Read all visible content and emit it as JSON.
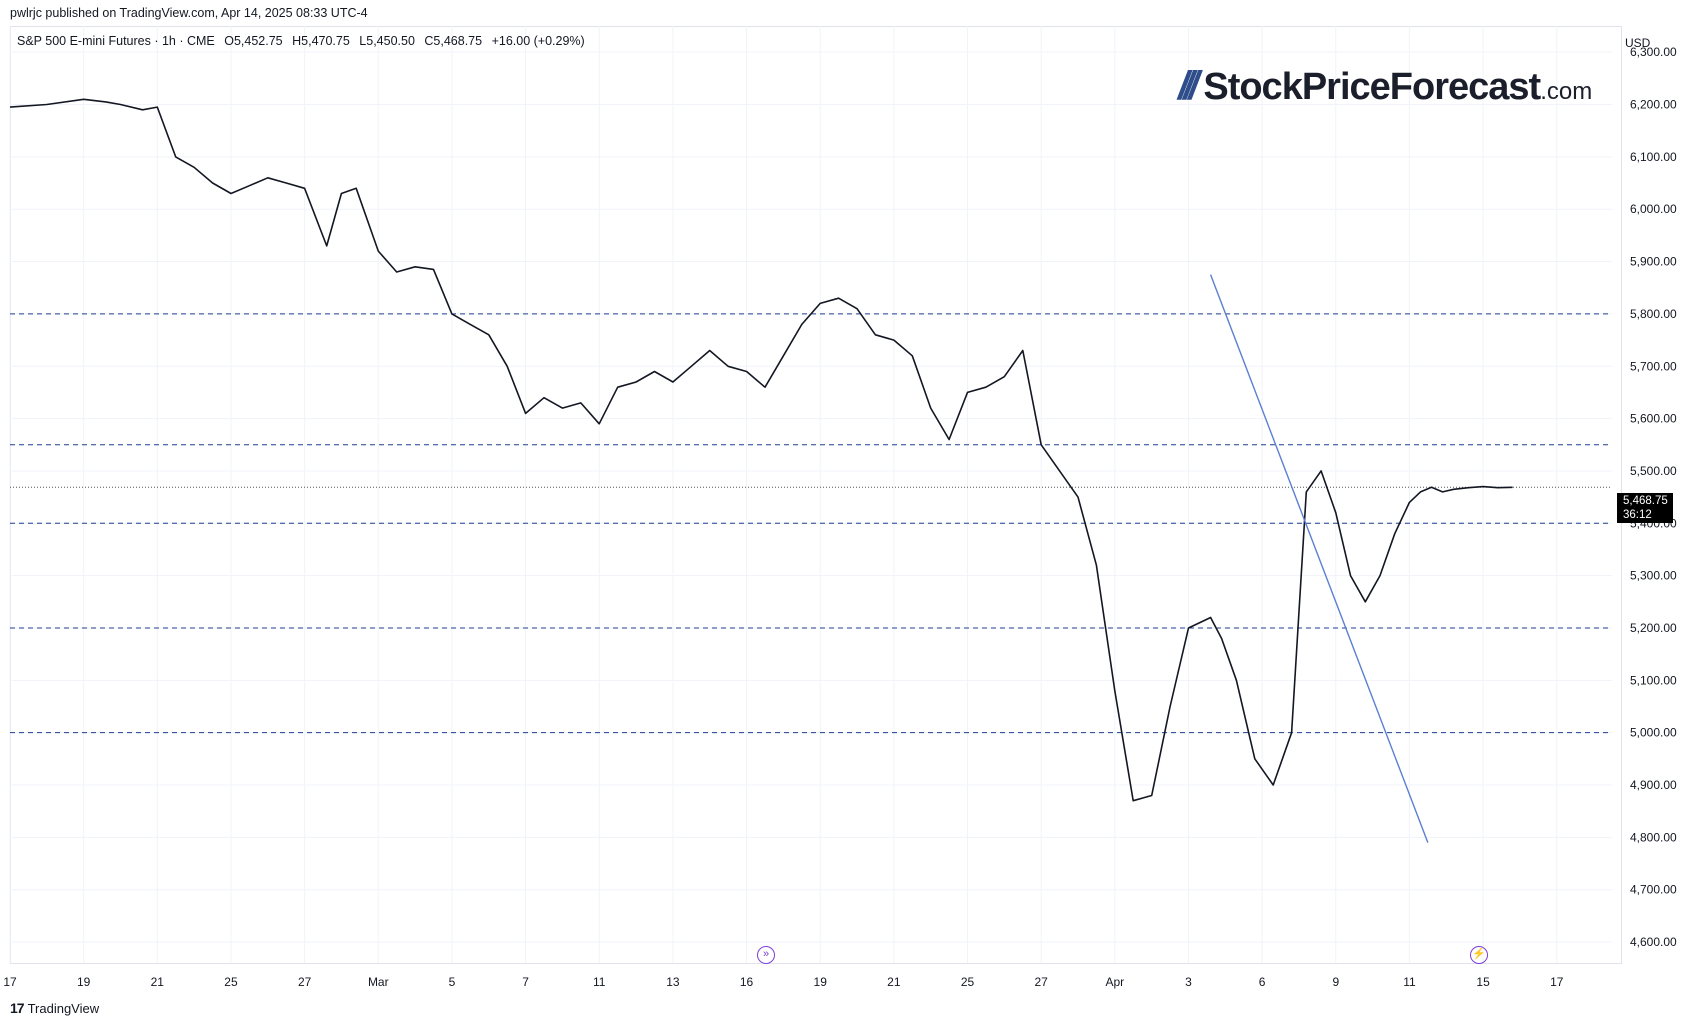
{
  "header": {
    "published": "pwlrjc published on TradingView.com, Apr 14, 2025 08:33 UTC-4"
  },
  "legend": {
    "symbol": "S&P 500 E-mini Futures · 1h · CME",
    "open": "O5,452.75",
    "high": "H5,470.75",
    "low": "L5,450.50",
    "close": "C5,468.75",
    "change": "+16.00 (+0.29%)"
  },
  "watermark": {
    "brand": "StockPriceForecast",
    "domain": ".com"
  },
  "price_axis": {
    "currency": "USD"
  },
  "last_price": {
    "price": "5,468.75",
    "countdown": "36:12"
  },
  "footer": {
    "brand": "TradingView"
  },
  "colors": {
    "candles": "#131722",
    "trendline": "#5b7fd1",
    "levels": "#1f3f8f",
    "grid": "#f0f3fa"
  },
  "chart_data": {
    "type": "line",
    "title": "",
    "ylim": [
      4560,
      6350
    ],
    "y_ticks": [
      "6,300.00",
      "6,200.00",
      "6,100.00",
      "6,000.00",
      "5,900.00",
      "5,800.00",
      "5,700.00",
      "5,600.00",
      "5,500.00",
      "5,400.00",
      "5,300.00",
      "5,200.00",
      "5,100.00",
      "5,000.00",
      "4,900.00",
      "4,800.00",
      "4,700.00",
      "4,600.00"
    ],
    "y_tick_values": [
      6300,
      6200,
      6100,
      6000,
      5900,
      5800,
      5700,
      5600,
      5500,
      5400,
      5300,
      5200,
      5100,
      5000,
      4900,
      4800,
      4700,
      4600
    ],
    "x_ticks": [
      "17",
      "19",
      "21",
      "25",
      "27",
      "Mar",
      "5",
      "7",
      "11",
      "13",
      "16",
      "19",
      "21",
      "25",
      "27",
      "Apr",
      "3",
      "6",
      "9",
      "11",
      "15",
      "17"
    ],
    "x_tick_index": [
      0,
      2,
      4,
      6,
      8,
      10,
      12,
      14,
      16,
      18,
      20,
      22,
      24,
      26,
      28,
      30,
      32,
      34,
      36,
      38,
      40,
      42
    ],
    "horizontal_levels": [
      5800,
      5550,
      5400,
      5200,
      5000
    ],
    "last_price_value": 5468.75,
    "trendline": [
      [
        32.6,
        5875
      ],
      [
        38.5,
        4790
      ]
    ],
    "series": [
      {
        "x": [
          0,
          1,
          2,
          2.6,
          3,
          3.6,
          4,
          4.5,
          5,
          5.5,
          6,
          6.5,
          7,
          7.5,
          8,
          8.6,
          9,
          9.4,
          10,
          10.5,
          11,
          11.5,
          12,
          12.5,
          13,
          13.5,
          14,
          14.5,
          15,
          15.5,
          16,
          16.5,
          17,
          17.5,
          18,
          18.5,
          19,
          19.5,
          20,
          20.5,
          21,
          21.5,
          22,
          22.5,
          23,
          23.5,
          24,
          24.5,
          25,
          25.5,
          26,
          26.5,
          27,
          27.5,
          28,
          28.5,
          29,
          29.5,
          30,
          30.5,
          31,
          31.5,
          32,
          32.6,
          32.9,
          33.3,
          33.8,
          34.3,
          34.8,
          35.2,
          35.6,
          36,
          36.4,
          36.8,
          37.2,
          37.6,
          38,
          38.3,
          38.6,
          38.9,
          39.2,
          39.6,
          40,
          40.4,
          40.8
        ],
        "y": [
          6195,
          6200,
          6210,
          6205,
          6200,
          6190,
          6195,
          6100,
          6080,
          6050,
          6030,
          6045,
          6060,
          6050,
          6040,
          5930,
          6030,
          6040,
          5920,
          5880,
          5890,
          5885,
          5800,
          5780,
          5760,
          5700,
          5610,
          5640,
          5620,
          5630,
          5590,
          5660,
          5670,
          5690,
          5670,
          5700,
          5730,
          5700,
          5690,
          5660,
          5720,
          5780,
          5820,
          5830,
          5810,
          5760,
          5750,
          5720,
          5620,
          5560,
          5650,
          5660,
          5680,
          5730,
          5550,
          5500,
          5450,
          5320,
          5080,
          4870,
          4880,
          5050,
          5200,
          5220,
          5180,
          5100,
          4950,
          4900,
          5000,
          5460,
          5500,
          5420,
          5300,
          5250,
          5300,
          5380,
          5440,
          5460,
          5468.75,
          5460,
          5465,
          5468,
          5470,
          5468,
          5468.75
        ]
      }
    ]
  }
}
